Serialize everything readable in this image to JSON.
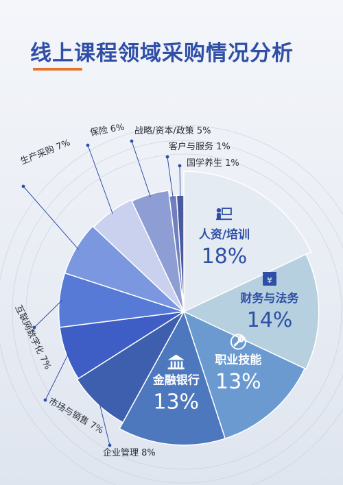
{
  "title": "线上课程领域采购情况分析",
  "colors": {
    "title": "#2f4fa6",
    "accent_underline": "#e8722a"
  },
  "chart_data": {
    "type": "pie",
    "title": "线上课程领域采购情况分析",
    "slices": [
      {
        "label": "人资/培训",
        "value": 18,
        "display": "18%",
        "color": "#e5ebf2",
        "icon": "presentation-icon",
        "inner_label": true
      },
      {
        "label": "财务与法务",
        "value": 14,
        "display": "14%",
        "color": "#b6d0df",
        "icon": "yen-icon",
        "inner_label": true
      },
      {
        "label": "职业技能",
        "value": 13,
        "display": "13%",
        "color": "#6a9ad0",
        "icon": "wrench-icon",
        "inner_label": true
      },
      {
        "label": "金融银行",
        "value": 13,
        "display": "13%",
        "color": "#4d78bd",
        "icon": "bank-icon",
        "inner_label": true
      },
      {
        "label": "企业管理",
        "value": 8,
        "display": "8%",
        "color": "#3e5fae",
        "inner_label": false
      },
      {
        "label": "市场与销售",
        "value": 7,
        "display": "7%",
        "color": "#3e5ec6",
        "inner_label": false
      },
      {
        "label": "互联网数字化",
        "value": 7,
        "display": "7%",
        "color": "#567ad6",
        "inner_label": false
      },
      {
        "label": "生产采购",
        "value": 7,
        "display": "7%",
        "color": "#7a97e0",
        "inner_label": false
      },
      {
        "label": "保险",
        "value": 6,
        "display": "6%",
        "color": "#c9d1ee",
        "inner_label": false
      },
      {
        "label": "战略/资本/政策",
        "value": 5,
        "display": "5%",
        "color": "#8e9ed4",
        "inner_label": false
      },
      {
        "label": "客户与服务",
        "value": 1,
        "display": "1%",
        "color": "#6f7fbf",
        "inner_label": false
      },
      {
        "label": "国学养生",
        "value": 1,
        "display": "1%",
        "color": "#4a5a9e",
        "inner_label": false
      }
    ],
    "legend": "none"
  }
}
